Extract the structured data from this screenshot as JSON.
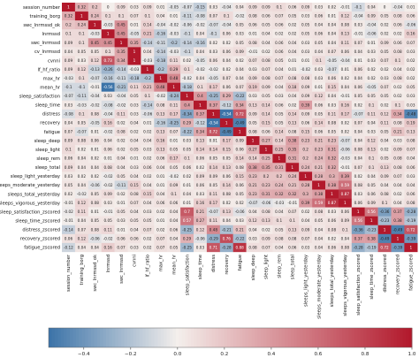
{
  "chart_data": {
    "type": "heatmap",
    "title": "",
    "variables": [
      "session_number",
      "training_borg",
      "swc_lnrmssd_ok",
      "lnrmssd",
      "swc_lnrmssd",
      "cv_lnrmssd",
      "cvnni",
      "lf_hf_ratio",
      "max_hr",
      "mean_hr",
      "sleep_satisfaction",
      "sleep_time",
      "distress",
      "recovery",
      "fatigue",
      "sleep_deep",
      "sleep_light",
      "sleep_rem",
      "sleep_total",
      "sleep_light_yesterday",
      "sleep_moderate_yesterday",
      "sleep_total_yesterday",
      "sleep_vigorous_yesterday",
      "sleep_satisfaction_zscored",
      "sleep_time_zscored",
      "distress_zscored",
      "recovery_zscored",
      "fatigue_zscored"
    ],
    "row_labels": [
      "session_number",
      "training_borg",
      "swc_lnrmssd_ok",
      "lnrmssd",
      "swc_lnrmssd",
      "cv_lnrmssd",
      "cvnni",
      "lf_hf_ratio",
      "max_hr",
      "mean_hr",
      "sleep_satisfaction",
      "sleep_time",
      "distress",
      "recovery",
      "fatigue",
      "sleep_deep",
      "sleep_light",
      "sleep_rem",
      "sleep_total",
      "sleep_light_yesterday",
      "sleeps_moderate_yesterday",
      "sleeps_total_yesterday",
      "sleeps_vigorous_yesterday",
      "sleep_satisfaction_zscored",
      "sleep_time_zscored",
      "distress_zscored",
      "recovery_zscored",
      "fatigue_zscored"
    ],
    "col_labels": [
      "session_number",
      "training_borg",
      "swc_lnrmssd_ok",
      "lnrmssd",
      "swc_lnrmssd",
      "cvnni",
      "lf_hf_ratio",
      "max_hr",
      "mean_hr",
      "sleep_satisfaction",
      "sleep_time",
      "distress",
      "recovery",
      "fatigue",
      "sleep_deep",
      "sleep_light",
      "sleep_rem",
      "sleep_total",
      "sleeps_light_yesterday",
      "sleeps_moderate_yesterday",
      "sleeps_total_yesterday",
      "sleeps_vigorous_yesterday",
      "sleep_satisfaction_zscored",
      "sleep_time_zscored",
      "distress_zscored",
      "recovery_zscored",
      "fatigue_zscored"
    ],
    "values": [
      [
        1,
        0.32,
        0.2,
        0,
        0.09,
        0.03,
        0.09,
        0.01,
        -0.05,
        -0.07,
        -0.15,
        0.03,
        -0.04,
        0.04,
        0.09,
        0.09,
        0.1,
        0.06,
        0.09,
        0.03,
        0.02,
        -0.01,
        -0.1,
        0.04,
        0,
        -0.04,
        0.01
      ],
      [
        0.32,
        1,
        0.24,
        0.1,
        0.1,
        0.07,
        0.1,
        0.04,
        0.01,
        -0.11,
        -0.08,
        0.07,
        0.1,
        -0.02,
        0.08,
        0.06,
        0.07,
        0.05,
        0.03,
        0.06,
        0.01,
        0.12,
        -0.04,
        0.09,
        0.05,
        0.08,
        0.06
      ],
      [
        0.2,
        0.24,
        1,
        -0.03,
        0.45,
        0.01,
        0.14,
        -0.04,
        -0.02,
        -0.06,
        -0.02,
        -0.07,
        -0.04,
        0.05,
        0.06,
        0.05,
        0.06,
        0.02,
        0.05,
        0.04,
        0.04,
        0.08,
        0.03,
        -0.04,
        0.02,
        0.06,
        -0.06
      ],
      [
        0.1,
        0.1,
        -0.03,
        1,
        0.45,
        -0.05,
        0.21,
        -0.16,
        -0.03,
        -0.1,
        0.04,
        -0.1,
        0.06,
        0.03,
        0.01,
        0.04,
        0.02,
        0.02,
        0.05,
        0.06,
        0.04,
        0.13,
        -0.01,
        -0.06,
        0.02,
        0.02,
        0.16
      ],
      [
        0.09,
        0.1,
        0.45,
        0.45,
        1,
        0.35,
        -0.14,
        -0.11,
        -0.2,
        -0.14,
        -0.16,
        0.02,
        0.02,
        0.05,
        0.08,
        0.04,
        0.06,
        0.04,
        0.03,
        0.05,
        0.04,
        0.11,
        0.07,
        0.01,
        0.09,
        0.06,
        0.07
      ],
      [
        0.04,
        0.05,
        0.05,
        0.1,
        0.35,
        1,
        0.04,
        -0.14,
        -0.03,
        -0.1,
        0.04,
        0.03,
        0.06,
        0.09,
        -0.01,
        0.02,
        0.06,
        0.04,
        0.03,
        0.04,
        0.07,
        0.06,
        0.04,
        0.03,
        0.05,
        0.08,
        0.03
      ],
      [
        0.09,
        0.03,
        0.12,
        0.73,
        0.34,
        1,
        -0.03,
        -0.18,
        0.11,
        0.02,
        -0.05,
        0.06,
        0.04,
        0.02,
        0.07,
        0.08,
        0.05,
        0.01,
        0.01,
        0.1,
        -0.05,
        -0.04,
        0.01,
        0.03,
        0.07,
        0.1,
        0.02
      ],
      [
        0.09,
        0.12,
        -0.13,
        -0.26,
        -0.14,
        -0.03,
        1,
        -0.2,
        0.29,
        0.1,
        -0.02,
        -0.02,
        0.02,
        0.04,
        0.03,
        0.07,
        0.04,
        0.01,
        -0.02,
        0.03,
        -0.07,
        0.01,
        0.06,
        0.02,
        0.02,
        0.04,
        0.02
      ],
      [
        -0.03,
        0.1,
        -0.07,
        -0.16,
        -0.11,
        -0.18,
        -0.2,
        1,
        0.48,
        -0.02,
        0.04,
        -0.05,
        0.07,
        0.04,
        0.09,
        0.08,
        0.07,
        0.08,
        0.08,
        0.03,
        0.06,
        0.02,
        0.04,
        0.02,
        0.03,
        0.08,
        0.02
      ],
      [
        -0.1,
        -0.1,
        -0.01,
        -0.56,
        -0.21,
        0.11,
        0.21,
        0.48,
        1,
        -0.18,
        0.1,
        0.17,
        0.06,
        0.07,
        0.19,
        0.09,
        0.04,
        0.18,
        0.09,
        0.01,
        0.15,
        0.04,
        0.06,
        -0.05,
        0.07,
        0.02,
        0.05
      ],
      [
        -0.07,
        -0.11,
        -0.04,
        0.03,
        -0.04,
        0.05,
        0.1,
        -0.02,
        -0.24,
        1,
        0.4,
        -0.25,
        0.29,
        -0.22,
        0.03,
        0.05,
        0.03,
        0.04,
        0.09,
        0.12,
        0.04,
        -0.01,
        0.05,
        0.05,
        0.05,
        0.02,
        0.03
      ],
      [
        0.03,
        -0.03,
        -0.02,
        -0.08,
        -0.02,
        0.03,
        -0.14,
        0.08,
        0.11,
        0.4,
        1,
        0.37,
        -0.12,
        0.34,
        0.13,
        0.14,
        0.06,
        0.02,
        0.39,
        0.06,
        0.03,
        0.16,
        0.02,
        0.1,
        0.02,
        0.1,
        0.03
      ],
      [
        -0.08,
        0.1,
        0.08,
        -0.04,
        0.11,
        0.03,
        -0.06,
        0.13,
        0.17,
        -0.34,
        0.37,
        1,
        -0.54,
        0.72,
        0.09,
        0.14,
        0.05,
        0.14,
        0.09,
        0.05,
        0.11,
        0.17,
        -0.07,
        0.11,
        0.12,
        0.34,
        -0.48
      ],
      [
        0.04,
        0.05,
        -0.05,
        0.16,
        0.02,
        0.04,
        0.01,
        -0.16,
        -0.25,
        0.29,
        -0.12,
        -0.54,
        1,
        -0.49,
        0.05,
        0.15,
        0.05,
        0.13,
        0.06,
        0.14,
        0.08,
        0.02,
        0.07,
        0.04,
        0.11,
        0.08,
        0.19
      ],
      [
        0.07,
        -0.07,
        0.01,
        -0.02,
        0.08,
        0.02,
        0.02,
        0.13,
        0.07,
        -0.22,
        0.34,
        0.72,
        -0.49,
        1,
        0.08,
        0.06,
        0.14,
        0.08,
        0.15,
        0.06,
        0.05,
        0.02,
        0.04,
        0.03,
        0.05,
        0.21,
        0.13
      ],
      [
        0.09,
        0.08,
        0.06,
        0.04,
        0.02,
        0.04,
        0.04,
        0.16,
        0.01,
        0.03,
        0.13,
        0.01,
        0.17,
        0.09,
        1,
        0.27,
        0.14,
        0.38,
        0.23,
        0.21,
        0.23,
        -0.07,
        0.04,
        0.12,
        0.04,
        0.03,
        0.08
      ],
      [
        0.1,
        0.02,
        0.01,
        0.06,
        0.02,
        0.05,
        0.03,
        0.13,
        0.05,
        0.05,
        0.14,
        0.14,
        0.15,
        0.06,
        0.27,
        1,
        0.25,
        0.35,
        0.2,
        0.23,
        0.31,
        -0.06,
        0.08,
        0.13,
        0.02,
        0.09,
        0.07
      ],
      [
        0.06,
        0.04,
        0.02,
        0.01,
        0.04,
        0.01,
        0.02,
        0.06,
        0.17,
        0.1,
        0.06,
        0.05,
        0.05,
        0.14,
        0.14,
        0.25,
        1,
        0.31,
        0.2,
        0.24,
        0.32,
        -0.03,
        0.04,
        0.1,
        0.05,
        0.08,
        0.04
      ],
      [
        0.09,
        0.04,
        0.04,
        0.08,
        0.04,
        0.03,
        0.06,
        0.04,
        0.05,
        0.06,
        0.02,
        0.14,
        0.13,
        0.08,
        0.38,
        0.35,
        0.31,
        1,
        0.24,
        0.21,
        0.32,
        -0.01,
        0.07,
        0.1,
        0.13,
        0.08,
        0.06
      ],
      [
        0.03,
        0.02,
        0.02,
        -0.02,
        0.05,
        0.04,
        0.02,
        0.01,
        -0.02,
        0.02,
        0.09,
        0.09,
        0.06,
        0.15,
        0.23,
        0.2,
        0.2,
        0.24,
        1,
        0.28,
        0.3,
        0.39,
        0.02,
        0.04,
        0.09,
        0.07,
        0.03
      ],
      [
        0.05,
        0.04,
        -0.06,
        -0.02,
        -0.11,
        0.15,
        0.04,
        0.01,
        0.09,
        0.01,
        0.06,
        0.05,
        0.14,
        0.06,
        0.21,
        0.23,
        0.24,
        0.21,
        0.28,
        1,
        0.38,
        0.59,
        0.08,
        0.05,
        0.04,
        0.04,
        0.04
      ],
      [
        0.02,
        -0.02,
        0.05,
        0.09,
        0.02,
        0.08,
        0.15,
        0.04,
        0.1,
        0.04,
        0.03,
        0.11,
        0.08,
        0.05,
        0.23,
        0.31,
        0.32,
        0.32,
        0.3,
        0.38,
        1,
        0.87,
        0.03,
        0.06,
        0.08,
        0.02,
        0.06
      ],
      [
        -0.01,
        0.12,
        0.08,
        0.03,
        0.01,
        0.07,
        0.04,
        0.06,
        0.06,
        0.01,
        0.16,
        0.17,
        0.02,
        0.02,
        -0.07,
        -0.06,
        -0.03,
        -0.01,
        0.39,
        0.59,
        0.87,
        1,
        0.06,
        0.09,
        0.1,
        0.04,
        0.08
      ],
      [
        -0.02,
        0.11,
        0.01,
        -0.01,
        0.05,
        0.04,
        0.03,
        0.02,
        0.04,
        0.7,
        0.21,
        -0.07,
        0.13,
        -0.06,
        0.04,
        0.08,
        0.04,
        0.07,
        0.02,
        0.08,
        0.03,
        0.06,
        1,
        0.56,
        -0.36,
        0.37,
        -0.28
      ],
      [
        -0.01,
        0.04,
        0.05,
        0.05,
        0.03,
        0.05,
        0.05,
        0.01,
        0.04,
        0.57,
        0.27,
        0.11,
        0.04,
        0.03,
        0.12,
        0.13,
        0.1,
        0.1,
        0.04,
        0.05,
        0.06,
        0.09,
        0.56,
        1,
        -0.23,
        0.38,
        -0.19
      ],
      [
        -0.14,
        0.07,
        0.08,
        0.11,
        0.01,
        0.04,
        0.07,
        0.02,
        0.06,
        -0.25,
        0.12,
        0.48,
        -0.21,
        0.21,
        0.04,
        0.02,
        0.05,
        0.13,
        0.09,
        0.04,
        0.08,
        0.1,
        -0.36,
        -0.23,
        1,
        -0.49,
        0.72
      ],
      [
        0.06,
        0.12,
        -0.06,
        -0.02,
        0.06,
        0.06,
        0.02,
        0.07,
        0.04,
        0.29,
        -0.06,
        -0.29,
        0.76,
        -0.22,
        0.03,
        0.09,
        0.08,
        0.08,
        0.07,
        0.04,
        0.02,
        0.04,
        0.37,
        0.38,
        -0.49,
        1,
        -0.39
      ],
      [
        -0.12,
        0.04,
        0.04,
        0.16,
        0.07,
        0.03,
        0.02,
        0.07,
        0.05,
        -0.25,
        0.03,
        0.71,
        -0.28,
        0.88,
        0.08,
        0.07,
        0.04,
        0.06,
        0.03,
        0.04,
        0.06,
        0.08,
        -0.28,
        -0.19,
        0.72,
        -0.39,
        1
      ]
    ],
    "colorbar": {
      "ticks": [
        -0.4,
        -0.2,
        0.0,
        0.2,
        0.4,
        0.6,
        0.8,
        1.0
      ],
      "tick_labels": [
        "−0.4",
        "−0.2",
        "0.0",
        "0.2",
        "0.4",
        "0.6",
        "0.8",
        "1.0"
      ],
      "range": [
        -0.55,
        1.0
      ],
      "low_color": "#3b73a8",
      "mid_color": "#f4efec",
      "high_color": "#b2182b"
    },
    "grid": false,
    "legend": "colorbar-bottom"
  }
}
